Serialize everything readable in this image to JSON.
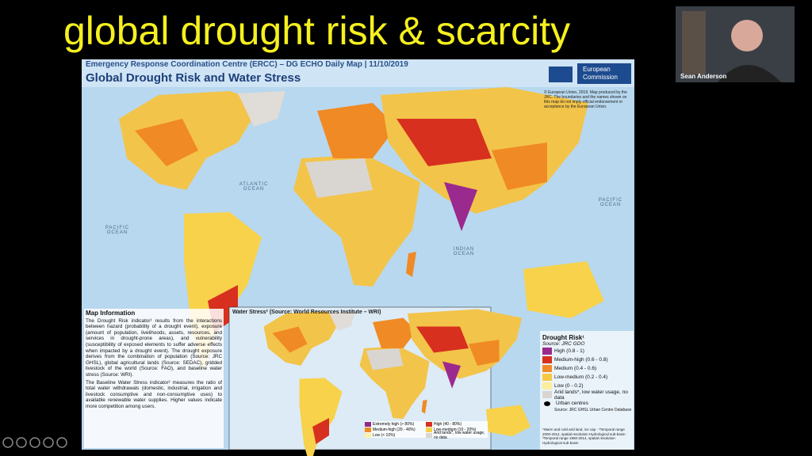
{
  "slide": {
    "title": "global drought risk & scarcity"
  },
  "webcam": {
    "name": "Sean Anderson"
  },
  "map": {
    "header": "Emergency Response Coordination Centre (ERCC) – DG ECHO Daily Map | 11/10/2019",
    "title": "Global Drought Risk and Water Stress",
    "logo": "European Commission",
    "copyright": "© European Union, 2019. Map produced by the JRC. The boundaries and the names shown on this map do not imply official endorsement or acceptance by the European Union.",
    "oceans": [
      "Atlantic Ocean",
      "Pacific Ocean",
      "Pacific Ocean",
      "Indian Ocean"
    ]
  },
  "info": {
    "heading": "Map Information",
    "paragraphs": [
      "The Drought Risk indicator¹ results from the interactions between hazard (probability of a drought event), exposure (amount of population, livelihoods, assets, resources, and services in drought-prone areas), and vulnerability (susceptibility of exposed elements to suffer adverse effects when impacted by a drought event). The drought exposure derives from the combination of population (Source: JRC GHSL), global agricultural lands (Source: SEDAC), gridded livestock of the world (Source: FAO), and baseline water stress (Source: WRI).",
      "The Baseline Water Stress indicator² measures the ratio of total water withdrawals (domestic, industrial, irrigation and livestock consumptive and non-consumptive uses) to available renewable water supplies. Higher values indicate more competition among users."
    ]
  },
  "inset": {
    "title": "Water Stress² (Source: World Resources Institute – WRI)",
    "legend": [
      {
        "label": "Extremely high (> 80%)",
        "color": "#8e2a8a"
      },
      {
        "label": "High (40 - 80%)",
        "color": "#d7301f"
      },
      {
        "label": "Medium-high (20 - 40%)",
        "color": "#f08a24"
      },
      {
        "label": "Low-medium (10 - 20%)",
        "color": "#f7d24a"
      },
      {
        "label": "Low (< 10%)",
        "color": "#fbf2a6"
      },
      {
        "label": "Arid lands*, low water usage, no data",
        "color": "#d9d6d2"
      }
    ]
  },
  "legend": {
    "title": "Drought Risk¹",
    "source": "Source: JRC GDO",
    "items": [
      {
        "label": "High (0.8 - 1)",
        "color": "#9b2a8e"
      },
      {
        "label": "Medium-high (0.6 - 0.8)",
        "color": "#d7301f"
      },
      {
        "label": "Medium (0.4 - 0.6)",
        "color": "#f08a24"
      },
      {
        "label": "Low-medium (0.2 - 0.4)",
        "color": "#f7c843"
      },
      {
        "label": "Low (0 - 0.2)",
        "color": "#fbee9c"
      },
      {
        "label": "Arid lands*, low water usage, no data",
        "color": "#d9d6d2"
      }
    ],
    "urban": "Urban centres",
    "urban_source": "Source: JRC GHSL Urban Centre Database",
    "footnote": "*Warm and cold arid land, ice cap · ¹Temporal range 2000-2014, spatial resolution Hydrological sub-basin · ²Temporal range 1960-2014, spatial resolution Hydrological sub-basin"
  }
}
